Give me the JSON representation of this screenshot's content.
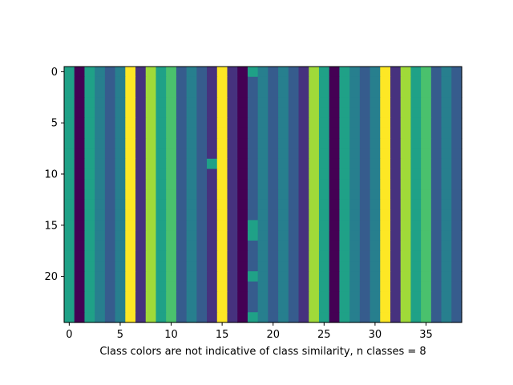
{
  "chart_data": {
    "type": "heatmap",
    "title": "",
    "xlabel": "Class colors are not indicative of class similarity, n classes = 8",
    "ylabel": "",
    "n_classes": 8,
    "n_rows": 25,
    "n_cols": 39,
    "xlim": [
      -0.5,
      38.5
    ],
    "ylim": [
      24.5,
      -0.5
    ],
    "x_ticks": [
      0,
      5,
      10,
      15,
      20,
      25,
      30,
      35
    ],
    "y_ticks": [
      0,
      5,
      10,
      15,
      20
    ],
    "colormap": "viridis",
    "class_colors": [
      "#440154",
      "#46327e",
      "#365c8d",
      "#277f8e",
      "#1fa187",
      "#4ac16d",
      "#a0da39",
      "#fde725"
    ],
    "column_classes": [
      4,
      0,
      4,
      3,
      2,
      3,
      7,
      1,
      6,
      4,
      5,
      2,
      3,
      2,
      1,
      7,
      1,
      0,
      2,
      3,
      2,
      3,
      2,
      1,
      6,
      4,
      0,
      4,
      3,
      2,
      3,
      7,
      1,
      6,
      4,
      5,
      2,
      3,
      2
    ],
    "exceptions": [
      {
        "col": 18,
        "rows": [
          0
        ],
        "class": 4
      },
      {
        "col": 14,
        "rows": [
          9
        ],
        "class": 4
      },
      {
        "col": 18,
        "rows": [
          15,
          16
        ],
        "class": 4
      },
      {
        "col": 18,
        "rows": [
          20
        ],
        "class": 4
      },
      {
        "col": 18,
        "rows": [
          24
        ],
        "class": 4
      }
    ]
  }
}
